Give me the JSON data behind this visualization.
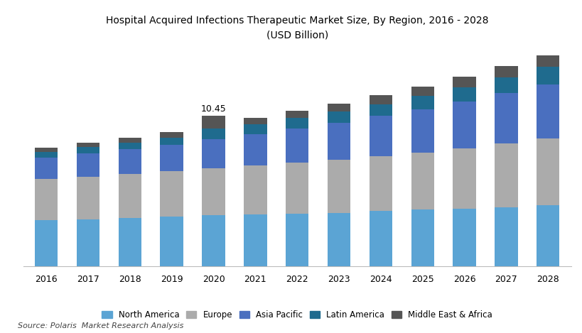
{
  "title": "Hospital Acquired Infections Therapeutic Market Size, By Region, 2016 - 2028",
  "subtitle": "(USD Billion)",
  "years": [
    2016,
    2017,
    2018,
    2019,
    2020,
    2021,
    2022,
    2023,
    2024,
    2025,
    2026,
    2027,
    2028
  ],
  "regions": [
    "North America",
    "Europe",
    "Asia Pacific",
    "Latin America",
    "Middle East & Africa"
  ],
  "colors": [
    "#5BA4D4",
    "#ABABAB",
    "#4A6FBF",
    "#1F6B8E",
    "#555555"
  ],
  "data": {
    "North America": [
      3.2,
      3.28,
      3.36,
      3.45,
      3.55,
      3.58,
      3.65,
      3.72,
      3.85,
      3.95,
      4.0,
      4.1,
      4.22
    ],
    "Europe": [
      2.85,
      2.95,
      3.05,
      3.15,
      3.25,
      3.4,
      3.52,
      3.65,
      3.78,
      3.95,
      4.18,
      4.42,
      4.65
    ],
    "Asia Pacific": [
      1.5,
      1.6,
      1.7,
      1.8,
      2.0,
      2.2,
      2.4,
      2.6,
      2.8,
      3.0,
      3.25,
      3.5,
      3.75
    ],
    "Latin America": [
      0.4,
      0.43,
      0.47,
      0.51,
      0.75,
      0.65,
      0.7,
      0.75,
      0.82,
      0.9,
      1.0,
      1.1,
      1.2
    ],
    "Middle East & Africa": [
      0.3,
      0.33,
      0.36,
      0.39,
      0.9,
      0.47,
      0.52,
      0.57,
      0.6,
      0.65,
      0.7,
      0.75,
      0.8
    ]
  },
  "annotation_year": 2020,
  "annotation_value": "10.45",
  "source": "Source: Polaris  Market Research Analysis",
  "ylim": [
    0,
    15
  ],
  "background_color": "#FFFFFF",
  "bar_width": 0.55
}
